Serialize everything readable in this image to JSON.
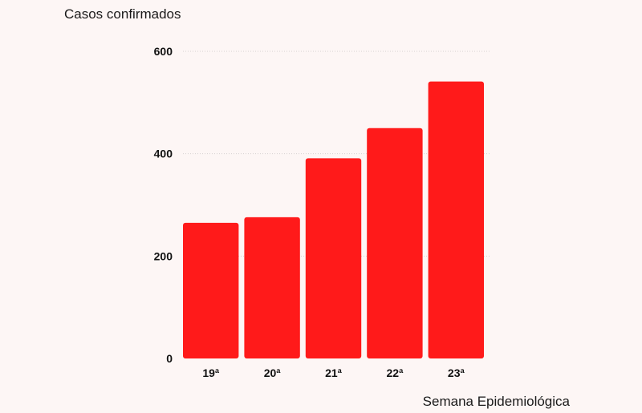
{
  "chart_data": {
    "type": "bar",
    "ylabel": "Casos confirmados",
    "xlabel": "Semana Epidemiológica",
    "categories": [
      "19ª",
      "20ª",
      "21ª",
      "22ª",
      "23ª"
    ],
    "values": [
      265,
      276,
      391,
      450,
      541
    ],
    "ylim": [
      0,
      600
    ],
    "yticks": [
      0,
      200,
      400,
      600
    ],
    "grid": true,
    "bar_color": "#ff1a1a"
  }
}
